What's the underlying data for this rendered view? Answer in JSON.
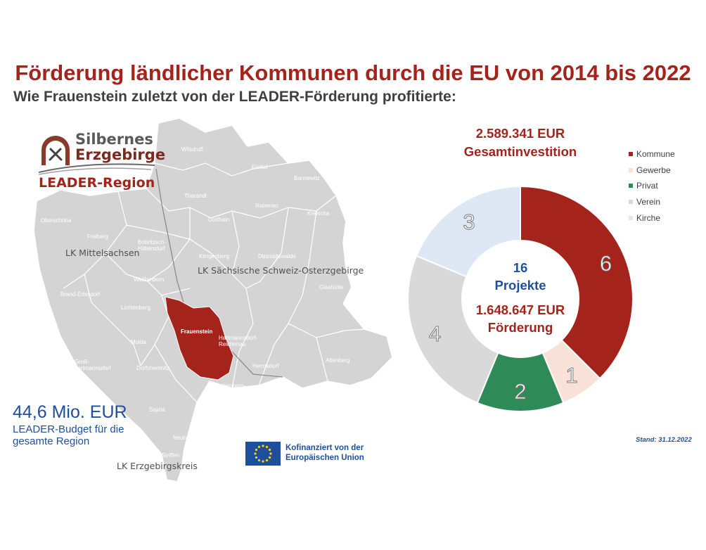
{
  "title": "Förderung ländlicher Kommunen durch die EU von 2014 bis 2022",
  "subtitle": "Wie Frauenstein zuletzt von der LEADER-Förderung profitierte:",
  "logo": {
    "line1": "Silbernes",
    "line2": "Erzgebirge",
    "region": "LEADER-Region"
  },
  "map": {
    "districts": [
      "LK Mittelsachsen",
      "LK Sächsische Schweiz-Osterzgebirge",
      "LK Erzgebirgskreis"
    ],
    "towns": [
      "Wilsdruff",
      "Freital",
      "Bannewitz",
      "Tharandt",
      "Rabenau",
      "Kreischa",
      "Oberschöna",
      "Freiberg",
      "Bobritzsch-Hilbersdorf",
      "Dorfhain",
      "Klingenberg",
      "Dippoldiswalde",
      "Glashütte",
      "Brand-Erbisdorf",
      "Weißenborn",
      "Lichtenberg",
      "Frauenstein",
      "Hartmannsdorf-Reichenau",
      "Mulda",
      "Groß-hartmannsdorf",
      "Dorfchemnitz",
      "Hermsdorf",
      "Altenberg",
      "Rechenberg-Bienenmühle",
      "Sayda",
      "Neuhausen",
      "Seiffen"
    ],
    "highlight": "Frauenstein",
    "highlight_color": "#a4241c"
  },
  "budget": {
    "value": "44,6 Mio. EUR",
    "label": "LEADER-Budget für die gesamte Region"
  },
  "eu": {
    "text": "Kofinanziert von der Europäischen Union"
  },
  "total_investment": {
    "value": "2.589.341 EUR",
    "label": "Gesamtinvestition"
  },
  "center": {
    "count": "16",
    "count_label": "Projekte",
    "funding": "1.648.647 EUR",
    "funding_label": "Förderung"
  },
  "stand": "Stand: 31.12.2022",
  "chart_data": {
    "type": "pie",
    "style": "donut",
    "categories": [
      "Kommune",
      "Gewerbe",
      "Privat",
      "Verein",
      "Kirche"
    ],
    "values": [
      6,
      1,
      2,
      4,
      3
    ],
    "colors": [
      "#a4241c",
      "#f8e1d6",
      "#2e8b57",
      "#d9d9d9",
      "#dde8f4"
    ],
    "legend": "right",
    "total": 16
  }
}
